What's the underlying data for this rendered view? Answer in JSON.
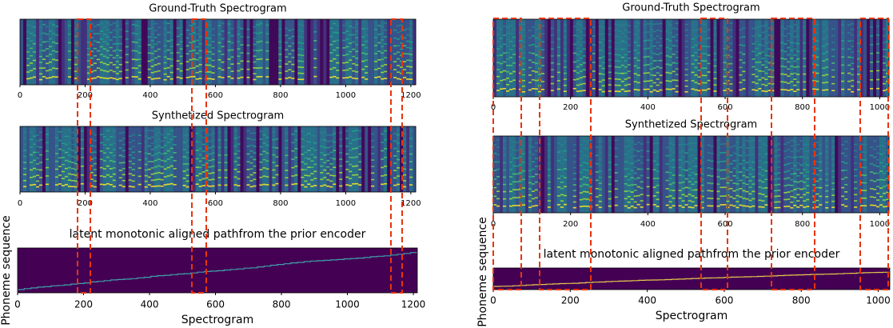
{
  "figures": [
    {
      "panels": [
        {
          "title": "Ground-Truth Spectrogram",
          "xlim": [
            0,
            1215
          ],
          "xticks": [
            0,
            200,
            400,
            600,
            800,
            1000,
            1200
          ]
        },
        {
          "title": "Synthetized Spectrogram",
          "xlim": [
            0,
            1215
          ],
          "xticks": [
            0,
            200,
            400,
            600,
            800,
            1000,
            1200
          ]
        },
        {
          "title": "latent monotonic aligned pathfrom the prior encoder",
          "xlim": [
            0,
            1212
          ],
          "xticks": [
            0,
            200,
            400,
            600,
            800,
            1000,
            1200
          ]
        }
      ],
      "xlabel": "Spectrogram",
      "ylabel": "Phoneme sequence"
    },
    {
      "panels": [
        {
          "title": "Ground-Truth Spectrogram",
          "xlim": [
            0,
            1024
          ],
          "xticks": [
            0,
            200,
            400,
            600,
            800,
            1000
          ]
        },
        {
          "title": "Synthetized Spectrogram",
          "xlim": [
            0,
            1024
          ],
          "xticks": [
            0,
            200,
            400,
            600,
            800,
            1000
          ]
        },
        {
          "title": "latent monotonic aligned pathfrom the prior encoder",
          "xlim": [
            0,
            1030
          ],
          "xticks": [
            0,
            200,
            400,
            600,
            800,
            1000
          ]
        }
      ],
      "xlabel": "Spectrogram",
      "ylabel": "Phoneme sequence"
    }
  ]
}
